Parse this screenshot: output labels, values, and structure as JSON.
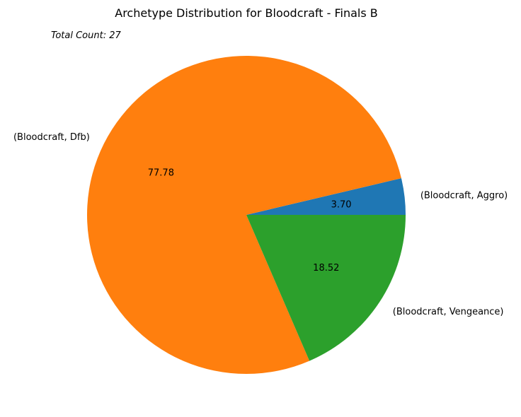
{
  "chart_data": {
    "type": "pie",
    "title": "Archetype Distribution for Bloodcraft - Finals B",
    "annotation": "Total Count: 27",
    "start_angle_deg": 0,
    "direction": "counterclockwise",
    "slices": [
      {
        "label": "(Bloodcraft, Aggro)",
        "value": 1,
        "pct_label": "3.70",
        "color": "#1f77b4"
      },
      {
        "label": "(Bloodcraft, Dfb)",
        "value": 21,
        "pct_label": "77.78",
        "color": "#ff7f0e"
      },
      {
        "label": "(Bloodcraft, Vengeance)",
        "value": 5,
        "pct_label": "18.52",
        "color": "#2ca02c"
      }
    ]
  }
}
